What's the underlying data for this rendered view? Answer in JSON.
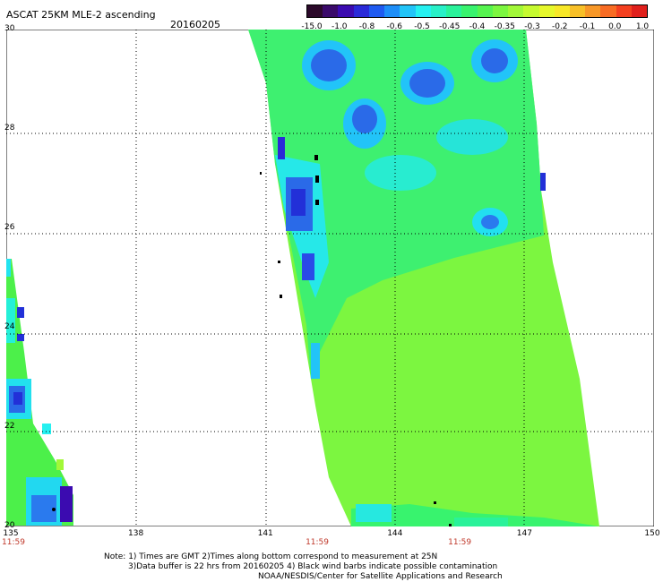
{
  "title": "ASCAT 25KM MLE-2 ascending",
  "date": "20160205",
  "colorbar": {
    "labels": [
      "-15.0",
      "-1.0",
      "-0.8",
      "-0.6",
      "-0.5",
      "-0.45",
      "-0.4",
      "-0.35",
      "-0.3",
      "-0.2",
      "-0.1",
      "0.0",
      "1.0"
    ],
    "colors": [
      "#2b0a2a",
      "#3a0a6a",
      "#3b0bb0",
      "#2a2ad8",
      "#1f5af0",
      "#1e8ef8",
      "#22c4f8",
      "#26f0f0",
      "#28f0c8",
      "#2af29a",
      "#38f36e",
      "#56f450",
      "#7cf640",
      "#a2f838",
      "#c6fa30",
      "#e6f82c",
      "#f8e828",
      "#f8c028",
      "#f89828",
      "#f86c24",
      "#f44020",
      "#e0201c"
    ]
  },
  "axes": {
    "lat_labels": [
      "30",
      "28",
      "26",
      "24",
      "22",
      "20"
    ],
    "lon_labels": [
      "135",
      "138",
      "141",
      "144",
      "147",
      "150"
    ],
    "time_labels": [
      {
        "text": "11:59",
        "lon": 135
      },
      {
        "text": "11:59",
        "lon": 142.2
      },
      {
        "text": "11:59",
        "lon": 145.5
      }
    ]
  },
  "notes": [
    "Note: 1) Times are GMT 2)Times along bottom correspond to measurement at 25N",
    "3)Data buffer is 22 hrs from 20160205 4) Black wind barbs indicate possible contamination",
    "NOAA/NESDIS/Center for Satellite Applications and Research"
  ]
}
